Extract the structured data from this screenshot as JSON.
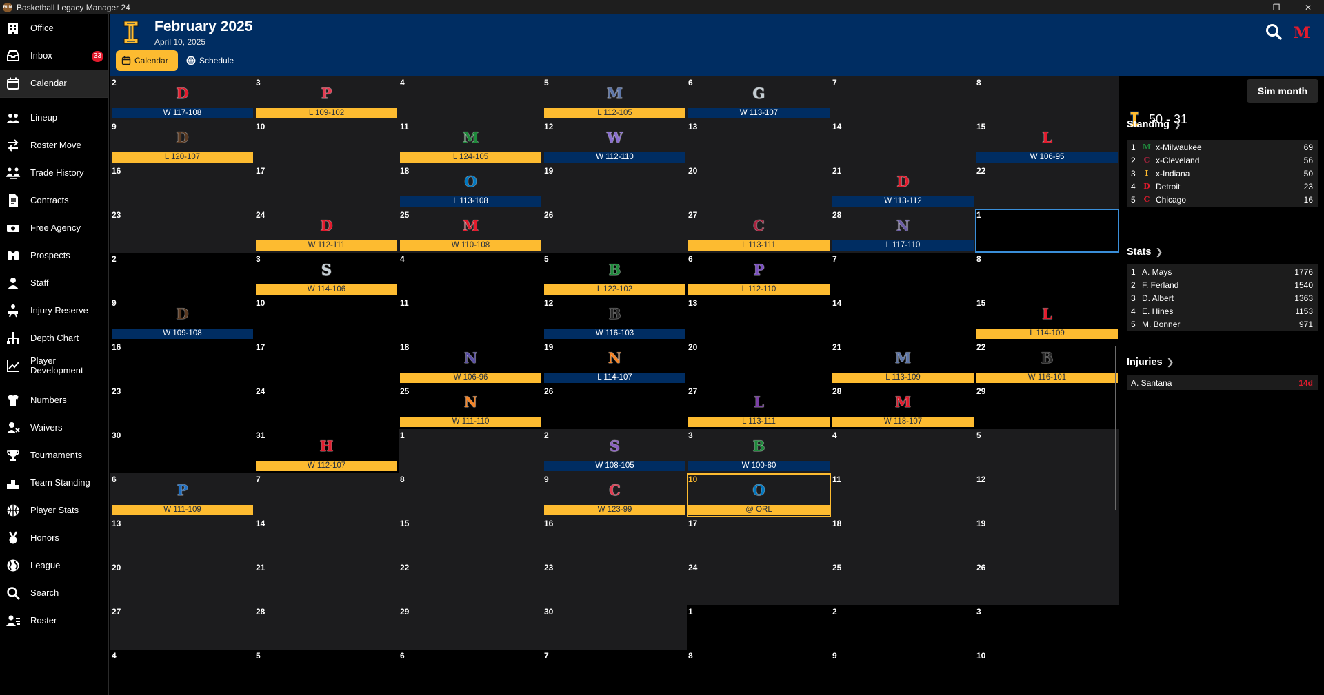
{
  "window": {
    "title": "Basketball Legacy Manager 24",
    "app_icon": "BLM",
    "buttons": [
      "—",
      "❐",
      "✕"
    ]
  },
  "sidebar": {
    "items": [
      {
        "label": "Office",
        "icon": "office-building-icon",
        "top": 0
      },
      {
        "label": "Inbox",
        "icon": "inbox-icon",
        "badge": "33"
      },
      {
        "label": "Calendar",
        "icon": "calendar-icon",
        "active": true
      },
      {
        "label": "Lineup",
        "icon": "lineup-icon"
      },
      {
        "label": "Roster Move",
        "icon": "roster-move-icon"
      },
      {
        "label": "Trade History",
        "icon": "trade-history-icon"
      },
      {
        "label": "Contracts",
        "icon": "contracts-icon"
      },
      {
        "label": "Free Agency",
        "icon": "free-agency-icon"
      },
      {
        "label": "Prospects",
        "icon": "binoculars-icon"
      },
      {
        "label": "Staff",
        "icon": "staff-icon"
      },
      {
        "label": "Injury Reserve",
        "icon": "injury-icon"
      },
      {
        "label": "Depth Chart",
        "icon": "depth-chart-icon"
      },
      {
        "label": "Player Development",
        "icon": "chart-line-icon"
      },
      {
        "label": "Numbers",
        "icon": "jersey-icon"
      },
      {
        "label": "Waivers",
        "icon": "waivers-icon"
      },
      {
        "label": "Tournaments",
        "icon": "trophy-icon"
      },
      {
        "label": "Team Standing",
        "icon": "podium-icon"
      },
      {
        "label": "Player Stats",
        "icon": "basketball-icon"
      },
      {
        "label": "Honors",
        "icon": "medal-icon"
      },
      {
        "label": "League",
        "icon": "globe-icon"
      },
      {
        "label": "Search",
        "icon": "search-icon"
      },
      {
        "label": "Roster",
        "icon": "roster-icon"
      }
    ]
  },
  "header": {
    "month": "February 2025",
    "date": "April 10, 2025",
    "tabs": [
      {
        "label": "Calendar"
      },
      {
        "label": "Schedule"
      }
    ],
    "team_color": "#002d62",
    "accent_color": "#fdbb30",
    "opponent_logo": "M"
  },
  "calendar": {
    "weeks": [
      [
        "2",
        "3",
        "4",
        "5",
        "6",
        "7",
        "8"
      ],
      [
        "9",
        "10",
        "11",
        "12",
        "13",
        "14",
        "15"
      ],
      [
        "16",
        "17",
        "18",
        "19",
        "20",
        "21",
        "22"
      ],
      [
        "23",
        "24",
        "25",
        "26",
        "27",
        "28",
        "1"
      ],
      [
        "2",
        "3",
        "4",
        "5",
        "6",
        "7",
        "8"
      ],
      [
        "9",
        "10",
        "11",
        "12",
        "13",
        "14",
        "15"
      ],
      [
        "16",
        "17",
        "18",
        "19",
        "20",
        "21",
        "22"
      ],
      [
        "23",
        "24",
        "25",
        "26",
        "27",
        "28",
        "29"
      ],
      [
        "30",
        "31",
        "1",
        "2",
        "3",
        "4",
        "5"
      ],
      [
        "6",
        "7",
        "8",
        "9",
        "10",
        "11",
        "12"
      ],
      [
        "13",
        "14",
        "15",
        "16",
        "17",
        "18",
        "19"
      ],
      [
        "20",
        "21",
        "22",
        "23",
        "24",
        "25",
        "26"
      ],
      [
        "27",
        "28",
        "29",
        "30",
        "1",
        "2",
        "3"
      ],
      [
        "4",
        "5",
        "6",
        "7",
        "8",
        "9",
        "10"
      ]
    ],
    "cell_shades": [
      [
        "d",
        "d",
        "d",
        "d",
        "d",
        "d",
        "d"
      ],
      [
        "d",
        "d",
        "d",
        "d",
        "d",
        "d",
        "d"
      ],
      [
        "d",
        "d",
        "d",
        "d",
        "d",
        "d",
        "d"
      ],
      [
        "d",
        "d",
        "d",
        "d",
        "d",
        "d",
        "k"
      ],
      [
        "k",
        "k",
        "k",
        "k",
        "k",
        "k",
        "k"
      ],
      [
        "k",
        "k",
        "k",
        "k",
        "k",
        "k",
        "k"
      ],
      [
        "k",
        "k",
        "k",
        "k",
        "k",
        "k",
        "k"
      ],
      [
        "k",
        "k",
        "k",
        "k",
        "k",
        "k",
        "k"
      ],
      [
        "k",
        "k",
        "d",
        "d",
        "d",
        "d",
        "d"
      ],
      [
        "d",
        "d",
        "d",
        "d",
        "d",
        "d",
        "d"
      ],
      [
        "d",
        "d",
        "d",
        "d",
        "d",
        "d",
        "d"
      ],
      [
        "d",
        "d",
        "d",
        "d",
        "d",
        "d",
        "d"
      ],
      [
        "d",
        "d",
        "d",
        "d",
        "k",
        "k",
        "k"
      ],
      [
        "k",
        "k",
        "k",
        "k",
        "k",
        "k",
        "k"
      ]
    ],
    "games": [
      {
        "w": 0,
        "d": 0,
        "logo": "D",
        "color": "#e21b2d",
        "result": "W 117-108",
        "side": "home"
      },
      {
        "w": 0,
        "d": 1,
        "logo": "P",
        "color": "#e53950",
        "result": "L 109-102",
        "side": "away"
      },
      {
        "w": 0,
        "d": 3,
        "logo": "M",
        "color": "#5d76a9",
        "result": "L 112-105",
        "side": "away"
      },
      {
        "w": 0,
        "d": 4,
        "logo": "G",
        "color": "#c4ced4",
        "result": "W 113-107",
        "side": "home"
      },
      {
        "w": 1,
        "d": 0,
        "logo": "D",
        "color": "#5a3a22",
        "result": "L 120-107",
        "side": "away"
      },
      {
        "w": 1,
        "d": 2,
        "logo": "M",
        "color": "#1f8a3c",
        "result": "L 124-105",
        "side": "away"
      },
      {
        "w": 1,
        "d": 3,
        "logo": "W",
        "color": "#8a6fcf",
        "result": "W 112-110",
        "side": "home"
      },
      {
        "w": 1,
        "d": 6,
        "logo": "L",
        "color": "#e21b2d",
        "result": "W 106-95",
        "side": "home"
      },
      {
        "w": 2,
        "d": 2,
        "logo": "O",
        "color": "#0077c0",
        "result": "L 113-108",
        "side": "home"
      },
      {
        "w": 2,
        "d": 5,
        "logo": "D",
        "color": "#e21b2d",
        "result": "W 113-112",
        "side": "home"
      },
      {
        "w": 3,
        "d": 1,
        "logo": "D",
        "color": "#e21b2d",
        "result": "W 112-111",
        "side": "away"
      },
      {
        "w": 3,
        "d": 2,
        "logo": "M",
        "color": "#e21b2d",
        "result": "W 110-108",
        "side": "away"
      },
      {
        "w": 3,
        "d": 4,
        "logo": "C",
        "color": "#a8233f",
        "result": "L 113-111",
        "side": "away"
      },
      {
        "w": 3,
        "d": 5,
        "logo": "N",
        "color": "#6b5ca5",
        "result": "L 117-110",
        "side": "home"
      },
      {
        "w": 4,
        "d": 1,
        "logo": "S",
        "color": "#c4ced4",
        "result": "W 114-106",
        "side": "away"
      },
      {
        "w": 4,
        "d": 3,
        "logo": "B",
        "color": "#1f8a3c",
        "result": "L 122-102",
        "side": "away"
      },
      {
        "w": 4,
        "d": 4,
        "logo": "P",
        "color": "#7a4fbf",
        "result": "L 112-110",
        "side": "away"
      },
      {
        "w": 5,
        "d": 0,
        "logo": "D",
        "color": "#5a3a22",
        "result": "W 109-108",
        "side": "home"
      },
      {
        "w": 5,
        "d": 3,
        "logo": "B",
        "color": "#2a2a2a",
        "result": "W 116-103",
        "side": "home"
      },
      {
        "w": 5,
        "d": 6,
        "logo": "L",
        "color": "#e21b2d",
        "result": "L 114-109",
        "side": "away"
      },
      {
        "w": 6,
        "d": 2,
        "logo": "N",
        "color": "#5a4fa5",
        "result": "W 106-96",
        "side": "away"
      },
      {
        "w": 6,
        "d": 3,
        "logo": "N",
        "color": "#f58426",
        "result": "L 114-107",
        "side": "home"
      },
      {
        "w": 6,
        "d": 5,
        "logo": "M",
        "color": "#5d76a9",
        "result": "L 113-109",
        "side": "away"
      },
      {
        "w": 6,
        "d": 6,
        "logo": "B",
        "color": "#2a2a2a",
        "result": "W 116-101",
        "side": "away"
      },
      {
        "w": 7,
        "d": 2,
        "logo": "N",
        "color": "#f58426",
        "result": "W 111-110",
        "side": "away"
      },
      {
        "w": 7,
        "d": 4,
        "logo": "L",
        "color": "#7a3fa5",
        "result": "L 113-111",
        "side": "away"
      },
      {
        "w": 7,
        "d": 5,
        "logo": "M",
        "color": "#e21b2d",
        "result": "W 118-107",
        "side": "away"
      },
      {
        "w": 8,
        "d": 1,
        "logo": "H",
        "color": "#e21b2d",
        "result": "W 112-107",
        "side": "away"
      },
      {
        "w": 8,
        "d": 3,
        "logo": "S",
        "color": "#8a5fbf",
        "result": "W 108-105",
        "side": "home"
      },
      {
        "w": 8,
        "d": 4,
        "logo": "B",
        "color": "#1f8a3c",
        "result": "W 100-80",
        "side": "home"
      },
      {
        "w": 9,
        "d": 0,
        "logo": "P",
        "color": "#1d6fc4",
        "result": "W 111-109",
        "side": "away"
      },
      {
        "w": 9,
        "d": 3,
        "logo": "C",
        "color": "#e53950",
        "result": "W 123-99",
        "side": "away"
      },
      {
        "w": 9,
        "d": 4,
        "logo": "O",
        "color": "#0077c0",
        "result": "@ ORL",
        "side": "away",
        "today": true
      }
    ],
    "selected": {
      "w": 3,
      "d": 6
    }
  },
  "right_panel": {
    "sim_button": "Sim month",
    "record": "50 - 31",
    "standing": {
      "title": "Standing",
      "rows": [
        {
          "rank": "1",
          "logo": "M",
          "logo_color": "#1f8a3c",
          "name": "x-Milwaukee",
          "value": "69"
        },
        {
          "rank": "2",
          "logo": "C",
          "logo_color": "#a8233f",
          "name": "x-Cleveland",
          "value": "56"
        },
        {
          "rank": "3",
          "logo": "I",
          "logo_color": "#fdbb30",
          "name": "x-Indiana",
          "value": "50"
        },
        {
          "rank": "4",
          "logo": "D",
          "logo_color": "#e21b2d",
          "name": "Detroit",
          "value": "23"
        },
        {
          "rank": "5",
          "logo": "C",
          "logo_color": "#e21b2d",
          "name": "Chicago",
          "value": "16"
        }
      ]
    },
    "stats": {
      "title": "Stats",
      "rows": [
        {
          "rank": "1",
          "name": "A. Mays",
          "value": "1776"
        },
        {
          "rank": "2",
          "name": "F. Ferland",
          "value": "1540"
        },
        {
          "rank": "3",
          "name": "D. Albert",
          "value": "1363"
        },
        {
          "rank": "4",
          "name": "E. Hines",
          "value": "1153"
        },
        {
          "rank": "5",
          "name": "M. Bonner",
          "value": "971"
        }
      ]
    },
    "injuries": {
      "title": "Injuries",
      "rows": [
        {
          "name": "A. Santana",
          "value": "14d"
        }
      ]
    }
  }
}
